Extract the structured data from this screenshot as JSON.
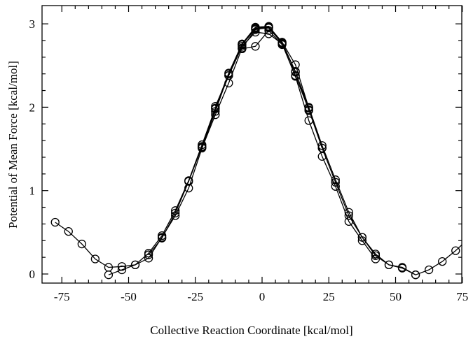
{
  "chart_data": {
    "type": "line",
    "title": "",
    "xlabel": "Collective Reaction Coordinate [kcal/mol]",
    "ylabel": "Potential of Mean Force [kcal/mol]",
    "xlim": [
      -75,
      75
    ],
    "ylim": [
      -0.1,
      3.1
    ],
    "grid": false,
    "legend": "none",
    "markers": "open-circle",
    "line_color": "#000000",
    "x_ticks": [
      {
        "value": -75,
        "label": "-75"
      },
      {
        "value": -50,
        "label": "-50"
      },
      {
        "value": -25,
        "label": "-25"
      },
      {
        "value": 0,
        "label": "0"
      },
      {
        "value": 25,
        "label": "25"
      },
      {
        "value": 50,
        "label": "50"
      },
      {
        "value": 75,
        "label": "75"
      }
    ],
    "y_ticks": [
      {
        "value": 0,
        "label": "0"
      },
      {
        "value": 1,
        "label": "1"
      },
      {
        "value": 2,
        "label": "2"
      },
      {
        "value": 3,
        "label": "3"
      }
    ],
    "series": [
      {
        "x": [
          -77.5,
          -72.5,
          -67.5,
          -62.5,
          -57.5,
          -52.5,
          -47.5,
          -42.5,
          -37.5,
          -32.5,
          -27.5,
          -22.5,
          -17.5,
          -12.5,
          -7.5,
          -2.5,
          2.5,
          7.5,
          12.5,
          17.5,
          22.5,
          27.5,
          32.5,
          37.5,
          42.5,
          47.5,
          52.5,
          57.5,
          62.5,
          67.5,
          72.5,
          77.5
        ],
        "y": [
          0.62,
          0.51,
          0.36,
          0.18,
          0.08,
          0.09,
          0.11,
          0.19,
          0.44,
          0.7,
          1.03,
          1.51,
          1.91,
          2.29,
          2.71,
          2.93,
          2.96,
          2.76,
          2.38,
          1.97,
          1.51,
          1.1,
          0.7,
          0.44,
          0.24,
          0.11,
          0.07,
          -0.01,
          0.05,
          0.15,
          0.28,
          0.43
        ]
      },
      {
        "x": [
          -57.5,
          -52.5,
          -47.5,
          -42.5,
          -37.5,
          -32.5,
          -27.5,
          -22.5,
          -17.5,
          -12.5,
          -7.5,
          -2.5,
          2.5,
          7.5,
          12.5,
          17.5,
          22.5,
          27.5,
          32.5,
          37.5,
          42.5,
          47.5,
          52.5,
          57.5
        ],
        "y": [
          -0.01,
          0.05,
          0.11,
          0.25,
          0.46,
          0.76,
          1.12,
          1.55,
          1.99,
          2.41,
          2.76,
          2.96,
          2.97,
          2.78,
          2.42,
          2.0,
          1.54,
          1.13,
          0.74,
          0.44,
          0.22,
          0.11,
          0.08,
          -0.01
        ]
      },
      {
        "x": [
          -42.5,
          -37.5,
          -32.5,
          -27.5,
          -22.5,
          -17.5,
          -12.5,
          -7.5,
          -2.5,
          2.5,
          7.5,
          12.5,
          17.5,
          22.5,
          27.5,
          32.5,
          37.5,
          42.5
        ],
        "y": [
          0.23,
          0.43,
          0.73,
          1.11,
          1.53,
          1.98,
          2.38,
          2.73,
          2.9,
          2.88,
          2.76,
          2.37,
          1.84,
          1.41,
          1.05,
          0.63,
          0.4,
          0.18
        ]
      },
      {
        "x": [
          -22.5,
          -17.5,
          -12.5,
          -7.5,
          -2.5,
          2.5,
          7.5,
          12.5,
          17.5,
          22.5
        ],
        "y": [
          1.52,
          1.95,
          2.4,
          2.75,
          2.95,
          2.96,
          2.78,
          2.51,
          1.99,
          1.51
        ]
      },
      {
        "x": [
          -17.5,
          -12.5,
          -7.5,
          -2.5,
          2.5,
          7.5,
          12.5,
          17.5
        ],
        "y": [
          2.01,
          2.38,
          2.75,
          2.94,
          2.95,
          2.77,
          2.43,
          1.96
        ]
      },
      {
        "x": [
          -7.5,
          -2.5,
          2.5,
          7.5
        ],
        "y": [
          2.7,
          2.73,
          2.92,
          2.75
        ]
      }
    ]
  }
}
